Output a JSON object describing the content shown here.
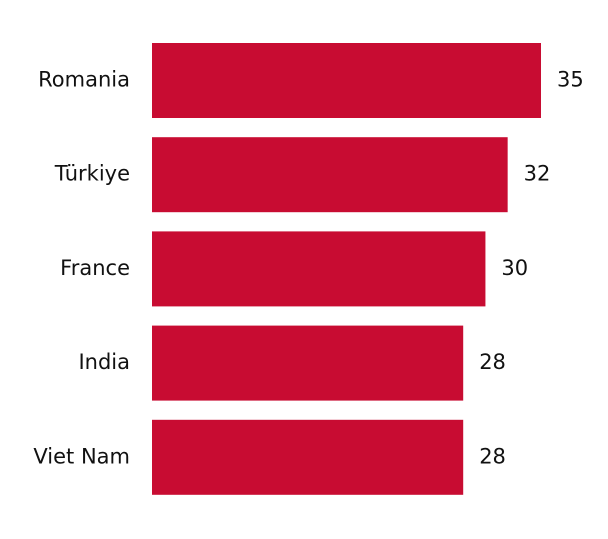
{
  "chart_data": {
    "type": "bar",
    "orientation": "horizontal",
    "categories": [
      "Romania",
      "Türkiye",
      "France",
      "India",
      "Viet Nam"
    ],
    "values": [
      35,
      32,
      30,
      28,
      28
    ],
    "color": "#c80c32"
  }
}
